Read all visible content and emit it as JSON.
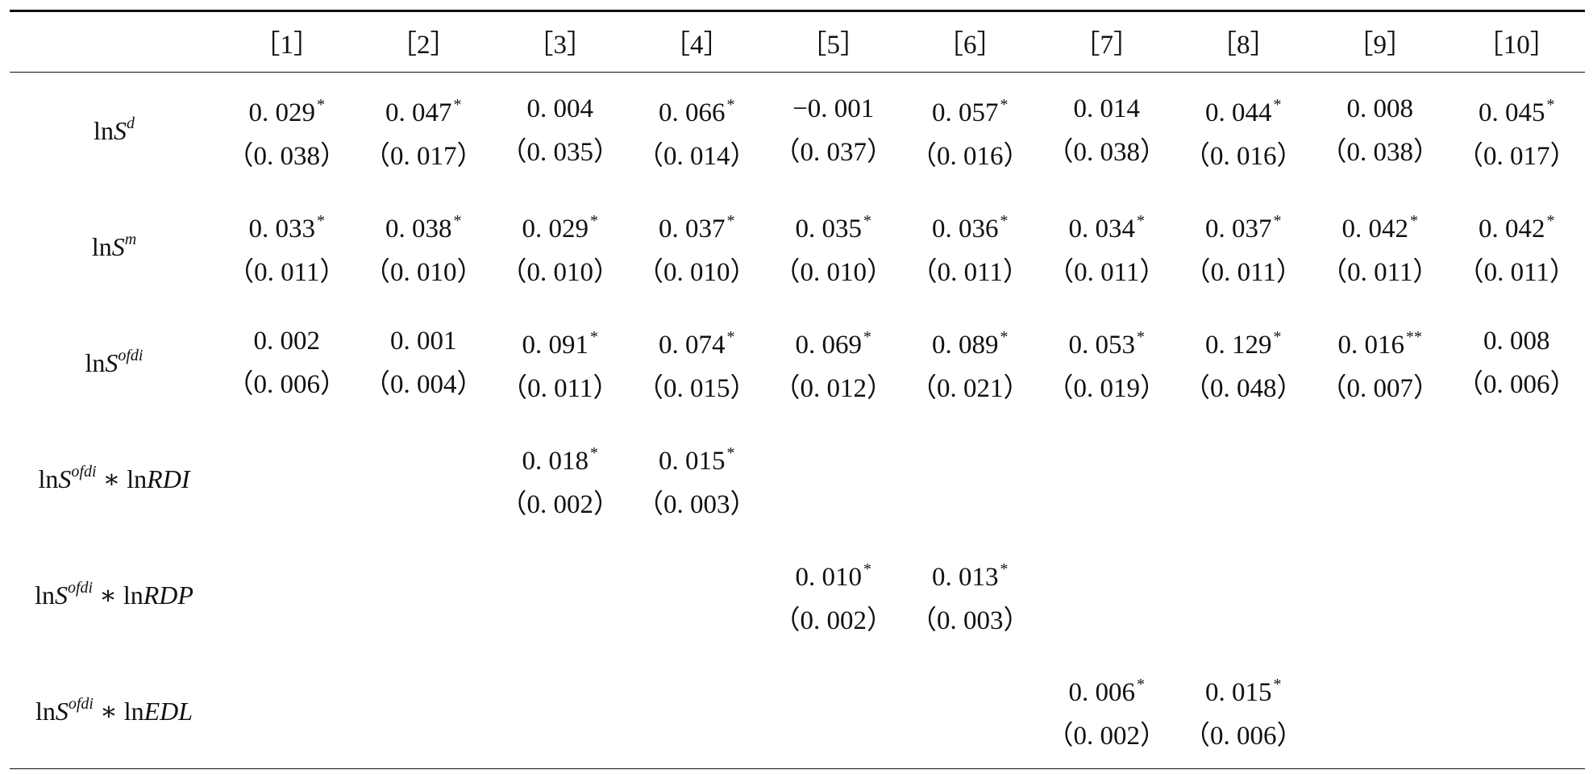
{
  "table": {
    "columns": [
      "［1］",
      "［2］",
      "［3］",
      "［4］",
      "［5］",
      "［6］",
      "［7］",
      "［8］",
      "［9］",
      "［10］"
    ],
    "rows": [
      {
        "label": [
          {
            "text": "ln"
          },
          {
            "text": "S",
            "italic": true
          },
          {
            "text": "d",
            "italic": true,
            "sup": true
          }
        ],
        "cells": [
          {
            "coef": "0. 029",
            "stars": "*",
            "se": "（0. 038）"
          },
          {
            "coef": "0. 047",
            "stars": "*",
            "se": "（0. 017）"
          },
          {
            "coef": "0. 004",
            "se": "（0. 035）"
          },
          {
            "coef": "0. 066",
            "stars": "*",
            "se": "（0. 014）"
          },
          {
            "coef": "−0. 001",
            "se": "（0. 037）"
          },
          {
            "coef": "0. 057",
            "stars": "*",
            "se": "（0. 016）"
          },
          {
            "coef": "0. 014",
            "se": "（0. 038）"
          },
          {
            "coef": "0. 044",
            "stars": "*",
            "se": "（0. 016）"
          },
          {
            "coef": "0. 008",
            "se": "（0. 038）"
          },
          {
            "coef": "0. 045",
            "stars": "*",
            "se": "（0. 017）"
          }
        ]
      },
      {
        "label": [
          {
            "text": "ln"
          },
          {
            "text": "S",
            "italic": true
          },
          {
            "text": "m",
            "italic": true,
            "sup": true
          }
        ],
        "cells": [
          {
            "coef": "0. 033",
            "stars": "*",
            "se": "（0. 011）"
          },
          {
            "coef": "0. 038",
            "stars": "*",
            "se": "（0. 010）"
          },
          {
            "coef": "0. 029",
            "stars": "*",
            "se": "（0. 010）"
          },
          {
            "coef": "0. 037",
            "stars": "*",
            "se": "（0. 010）"
          },
          {
            "coef": "0. 035",
            "stars": "*",
            "se": "（0. 010）"
          },
          {
            "coef": "0. 036",
            "stars": "*",
            "se": "（0. 011）"
          },
          {
            "coef": "0. 034",
            "stars": "*",
            "se": "（0. 011）"
          },
          {
            "coef": "0. 037",
            "stars": "*",
            "se": "（0. 011）"
          },
          {
            "coef": "0. 042",
            "stars": "*",
            "se": "（0. 011）"
          },
          {
            "coef": "0. 042",
            "stars": "*",
            "se": "（0. 011）"
          }
        ]
      },
      {
        "label": [
          {
            "text": "ln"
          },
          {
            "text": "S",
            "italic": true
          },
          {
            "text": "ofdi",
            "italic": true,
            "sup": true
          }
        ],
        "cells": [
          {
            "coef": "0. 002",
            "se": "（0. 006）"
          },
          {
            "coef": "0. 001",
            "se": "（0. 004）"
          },
          {
            "coef": "0. 091",
            "stars": "*",
            "se": "（0. 011）"
          },
          {
            "coef": "0. 074",
            "stars": "*",
            "se": "（0. 015）"
          },
          {
            "coef": "0. 069",
            "stars": "*",
            "se": "（0. 012）"
          },
          {
            "coef": "0. 089",
            "stars": "*",
            "se": "（0. 021）"
          },
          {
            "coef": "0. 053",
            "stars": "*",
            "se": "（0. 019）"
          },
          {
            "coef": "0. 129",
            "stars": "*",
            "se": "（0. 048）"
          },
          {
            "coef": "0. 016",
            "stars": "**",
            "se": "（0. 007）"
          },
          {
            "coef": "0. 008",
            "se": "（0. 006）"
          }
        ]
      },
      {
        "label": [
          {
            "text": "ln"
          },
          {
            "text": "S",
            "italic": true
          },
          {
            "text": "ofdi",
            "italic": true,
            "sup": true
          },
          {
            "text": " ∗ ln"
          },
          {
            "text": "RDI",
            "italic": true
          }
        ],
        "cells": [
          null,
          null,
          {
            "coef": "0. 018",
            "stars": "*",
            "se": "（0. 002）"
          },
          {
            "coef": "0. 015",
            "stars": "*",
            "se": "（0. 003）"
          },
          null,
          null,
          null,
          null,
          null,
          null
        ]
      },
      {
        "label": [
          {
            "text": "ln"
          },
          {
            "text": "S",
            "italic": true
          },
          {
            "text": "ofdi",
            "italic": true,
            "sup": true
          },
          {
            "text": " ∗ ln"
          },
          {
            "text": "RDP",
            "italic": true
          }
        ],
        "cells": [
          null,
          null,
          null,
          null,
          {
            "coef": "0. 010",
            "stars": "*",
            "se": "（0. 002）"
          },
          {
            "coef": "0. 013",
            "stars": "*",
            "se": "（0. 003）"
          },
          null,
          null,
          null,
          null
        ]
      },
      {
        "label": [
          {
            "text": "ln"
          },
          {
            "text": "S",
            "italic": true
          },
          {
            "text": "ofdi",
            "italic": true,
            "sup": true
          },
          {
            "text": " ∗ ln"
          },
          {
            "text": "EDL",
            "italic": true
          }
        ],
        "cells": [
          null,
          null,
          null,
          null,
          null,
          null,
          {
            "coef": "0. 006",
            "stars": "*",
            "se": "（0. 002）"
          },
          {
            "coef": "0. 015",
            "stars": "*",
            "se": "（0. 006）"
          },
          null,
          null
        ]
      }
    ]
  }
}
